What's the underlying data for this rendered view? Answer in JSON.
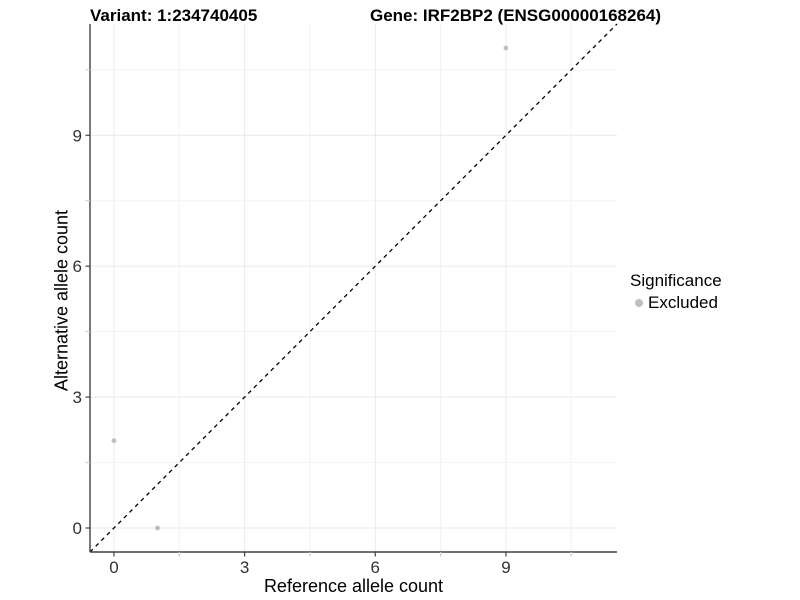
{
  "titles": {
    "variant": "Variant: 1:234740405",
    "gene": "Gene: IRF2BP2 (ENSG00000168264)"
  },
  "legend": {
    "title": "Significance",
    "items": [
      {
        "label": "Excluded",
        "color": "#bfbfbf"
      }
    ]
  },
  "chart_data": {
    "type": "scatter",
    "title": "",
    "xlabel": "Reference allele count",
    "ylabel": "Alternative allele count",
    "x_ticks": [
      0,
      3,
      6,
      9
    ],
    "y_ticks": [
      0,
      3,
      6,
      9
    ],
    "x_minor_ticks": [
      1.5,
      4.5,
      7.5,
      10.5
    ],
    "y_minor_ticks": [
      1.5,
      4.5,
      7.5,
      10.5
    ],
    "xlim": [
      -0.55,
      11.55
    ],
    "ylim": [
      -0.55,
      11.55
    ],
    "grid": true,
    "legend_position": "right",
    "series": [
      {
        "name": "Excluded",
        "color": "#bfbfbf",
        "points": [
          {
            "x": 0,
            "y": 2
          },
          {
            "x": 1,
            "y": 0
          },
          {
            "x": 9,
            "y": 11
          }
        ]
      }
    ],
    "reference_line": {
      "type": "identity",
      "style": "dashed",
      "color": "#000000",
      "slope": 1,
      "intercept": 0
    },
    "colors": {
      "axis_line": "#404040",
      "major_grid": "#e9e9e9",
      "minor_grid": "#f3f3f3",
      "tick_major": "#404040",
      "tick_minor": "#cfcfcf"
    }
  }
}
